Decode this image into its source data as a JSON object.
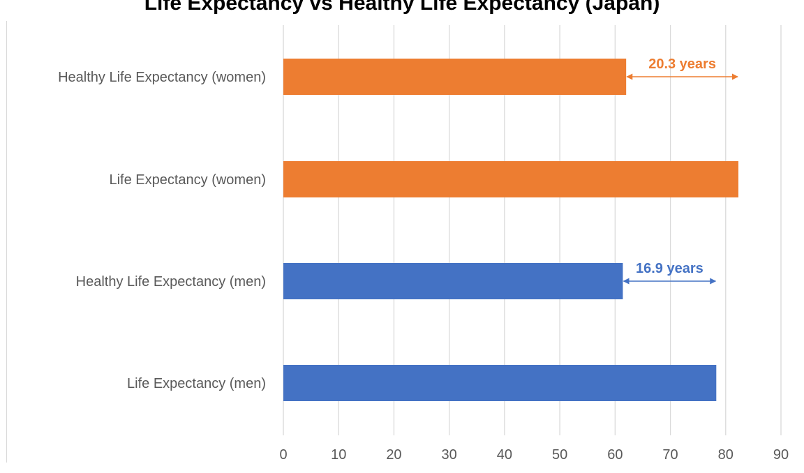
{
  "chart_data": {
    "type": "bar",
    "orientation": "horizontal",
    "title": "Life Expectancy vs Healthy Life Expectancy (Japan)",
    "categories": [
      "Healthy Life Expectancy (women)",
      "Life Expectancy (women)",
      "Healthy Life Expectancy (men)",
      "Life Expectancy (men)"
    ],
    "values": [
      62.0,
      82.3,
      61.4,
      78.3
    ],
    "bar_colors": [
      "#ED7D31",
      "#ED7D31",
      "#4472C4",
      "#4472C4"
    ],
    "xlim": [
      0,
      90
    ],
    "x_ticks": [
      0,
      10,
      20,
      30,
      40,
      50,
      60,
      70,
      80,
      90
    ],
    "x_tick_labels": [
      "0",
      "10",
      "20",
      "30",
      "40",
      "50",
      "60",
      "70",
      "80",
      "90"
    ],
    "grid": true,
    "annotations": [
      {
        "label": "20.3 years",
        "category_index": 0,
        "from": 62.0,
        "to": 82.3,
        "color": "#ED7D31"
      },
      {
        "label": "16.9 years",
        "category_index": 2,
        "from": 61.4,
        "to": 78.3,
        "color": "#4472C4"
      }
    ]
  }
}
